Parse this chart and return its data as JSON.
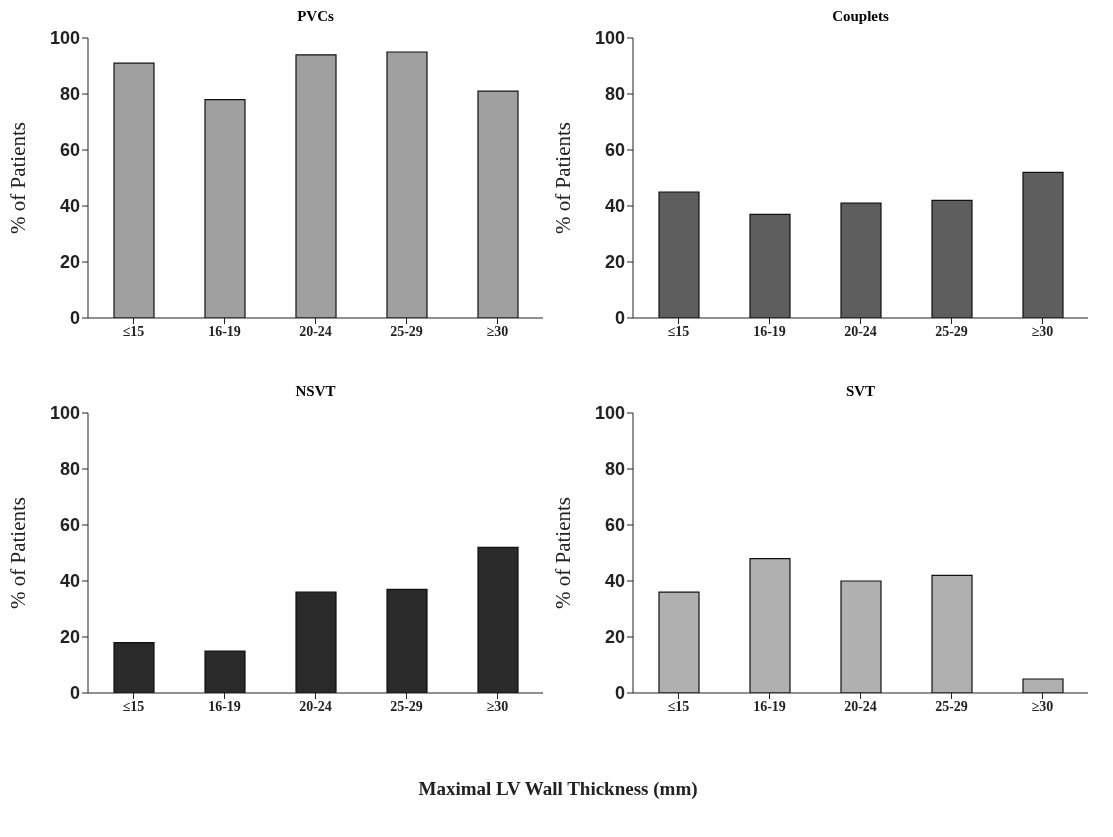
{
  "chart_data": [
    {
      "type": "bar",
      "title": "PVCs",
      "ylabel": "% of Patients",
      "categories": [
        "≤15",
        "16-19",
        "20-24",
        "25-29",
        "≥30"
      ],
      "values": [
        91,
        78,
        94,
        95,
        81
      ],
      "color": "#a0a0a0",
      "ylim": [
        0,
        100
      ],
      "yticks": [
        0,
        20,
        40,
        60,
        80,
        100
      ]
    },
    {
      "type": "bar",
      "title": "Couplets",
      "ylabel": "% of Patients",
      "categories": [
        "≤15",
        "16-19",
        "20-24",
        "25-29",
        "≥30"
      ],
      "values": [
        45,
        37,
        41,
        42,
        52
      ],
      "color": "#5e5e5e",
      "ylim": [
        0,
        100
      ],
      "yticks": [
        0,
        20,
        40,
        60,
        80,
        100
      ]
    },
    {
      "type": "bar",
      "title": "NSVT",
      "ylabel": "% of Patients",
      "categories": [
        "≤15",
        "16-19",
        "20-24",
        "25-29",
        "≥30"
      ],
      "values": [
        18,
        15,
        36,
        37,
        52
      ],
      "color": "#2a2a2a",
      "ylim": [
        0,
        100
      ],
      "yticks": [
        0,
        20,
        40,
        60,
        80,
        100
      ]
    },
    {
      "type": "bar",
      "title": "SVT",
      "ylabel": "% of Patients",
      "categories": [
        "≤15",
        "16-19",
        "20-24",
        "25-29",
        "≥30"
      ],
      "values": [
        36,
        48,
        40,
        42,
        5
      ],
      "color": "#b0b0b0",
      "ylim": [
        0,
        100
      ],
      "yticks": [
        0,
        20,
        40,
        60,
        80,
        100
      ],
      "annotations": [
        "Maximal LV Wall Thickness (mm)"
      ]
    }
  ]
}
